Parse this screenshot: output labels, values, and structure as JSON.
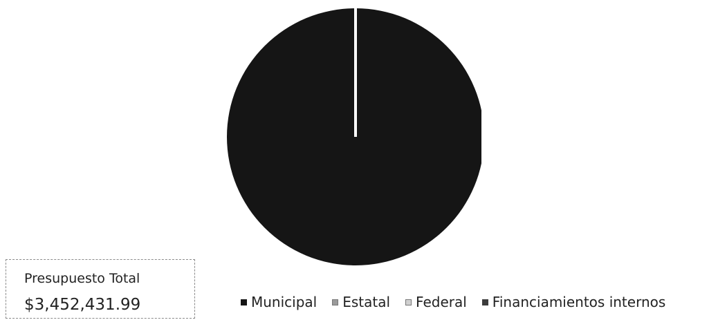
{
  "chart_data": {
    "type": "pie",
    "title": "",
    "series": [
      {
        "name": "Municipal",
        "value": 3452431.99,
        "color": "#151515"
      },
      {
        "name": "Estatal",
        "value": 0,
        "color": "#9a9a9a"
      },
      {
        "name": "Federal",
        "value": 0,
        "color": "#d0d0d0"
      },
      {
        "name": "Financiamientos internos",
        "value": 0,
        "color": "#3c3c3c"
      }
    ],
    "legend_position": "bottom"
  },
  "summary": {
    "label": "Presupuesto Total",
    "value": "$3,452,431.99"
  }
}
